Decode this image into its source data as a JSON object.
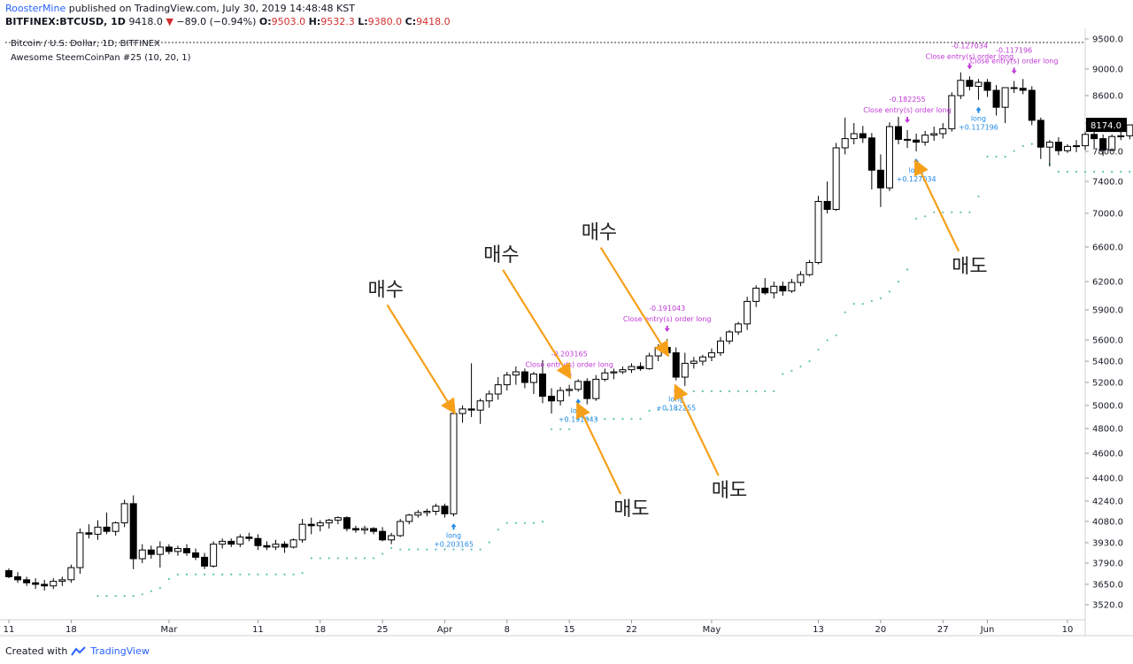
{
  "header": {
    "author": "RoosterMine",
    "published_text": "published on TradingView.com, July 30, 2019 14:48:48 KST",
    "symbol": "BITFINEX:BTCUSD, 1D",
    "last": "9418.0",
    "change": "−89.0 (−0.94%)",
    "o_label": "O:",
    "o": "9503.0",
    "h_label": "H:",
    "h": "9532.3",
    "l_label": "L:",
    "l": "9380.0",
    "c_label": "C:",
    "c": "9418.0"
  },
  "footer": {
    "created_with": "Created with",
    "brand": "TradingView"
  },
  "colors": {
    "up_body": "#ffffff",
    "down_body": "#000000",
    "wick": "#000000",
    "dots": "#5fbfb7",
    "long": "#1e88e5",
    "close": "#c039d6",
    "arrow": "#f6a01a",
    "price_label_bg": "#000000"
  },
  "chart_data": {
    "type": "candlestick",
    "title": "Bitcoin / U.S. Dollar, 1D, BITFINEX",
    "indicator": "Awesome SteemCoinPan #25 (10, 20, 1)",
    "last_price_label": "8174.0",
    "y_ticks": [
      "9500.0",
      "9000.0",
      "8600.0",
      "8200.0",
      "7800.0",
      "7400.0",
      "7000.0",
      "6600.0",
      "6200.0",
      "5900.0",
      "5600.0",
      "5400.0",
      "5200.0",
      "5000.0",
      "4800.0",
      "4600.0",
      "4400.0",
      "4240.0",
      "4080.0",
      "3930.0",
      "3790.0",
      "3650.0",
      "3520.0"
    ],
    "x_ticks": [
      {
        "label": "11",
        "i": 0
      },
      {
        "label": "18",
        "i": 7
      },
      {
        "label": "Mar",
        "i": 18
      },
      {
        "label": "11",
        "i": 28
      },
      {
        "label": "18",
        "i": 35
      },
      {
        "label": "25",
        "i": 42
      },
      {
        "label": "Apr",
        "i": 49
      },
      {
        "label": "8",
        "i": 56
      },
      {
        "label": "15",
        "i": 63
      },
      {
        "label": "22",
        "i": 70
      },
      {
        "label": "May",
        "i": 79
      },
      {
        "label": "13",
        "i": 91
      },
      {
        "label": "20",
        "i": 98
      },
      {
        "label": "27",
        "i": 105
      },
      {
        "label": "Jun",
        "i": 110
      },
      {
        "label": "10",
        "i": 119
      }
    ],
    "candles": [
      [
        3740,
        3755,
        3690,
        3700
      ],
      [
        3700,
        3730,
        3660,
        3680
      ],
      [
        3680,
        3700,
        3640,
        3660
      ],
      [
        3660,
        3690,
        3620,
        3650
      ],
      [
        3650,
        3680,
        3610,
        3640
      ],
      [
        3640,
        3690,
        3620,
        3670
      ],
      [
        3670,
        3700,
        3640,
        3680
      ],
      [
        3680,
        3780,
        3660,
        3760
      ],
      [
        3760,
        4030,
        3720,
        4000
      ],
      [
        4000,
        4060,
        3960,
        3990
      ],
      [
        3990,
        4090,
        3950,
        4040
      ],
      [
        4040,
        4150,
        3990,
        4010
      ],
      [
        4010,
        4080,
        3980,
        4070
      ],
      [
        4070,
        4250,
        4040,
        4220
      ],
      [
        4220,
        4280,
        3750,
        3820
      ],
      [
        3820,
        3920,
        3790,
        3880
      ],
      [
        3880,
        3910,
        3820,
        3850
      ],
      [
        3850,
        3940,
        3760,
        3900
      ],
      [
        3900,
        3920,
        3850,
        3870
      ],
      [
        3870,
        3910,
        3840,
        3890
      ],
      [
        3890,
        3920,
        3840,
        3860
      ],
      [
        3860,
        3890,
        3810,
        3830
      ],
      [
        3830,
        3860,
        3750,
        3770
      ],
      [
        3770,
        3940,
        3760,
        3920
      ],
      [
        3920,
        3960,
        3890,
        3940
      ],
      [
        3940,
        3960,
        3900,
        3920
      ],
      [
        3920,
        3990,
        3900,
        3970
      ],
      [
        3970,
        4000,
        3940,
        3960
      ],
      [
        3960,
        3990,
        3880,
        3910
      ],
      [
        3910,
        3940,
        3880,
        3900
      ],
      [
        3900,
        3950,
        3880,
        3920
      ],
      [
        3920,
        3940,
        3860,
        3900
      ],
      [
        3900,
        3960,
        3890,
        3950
      ],
      [
        3950,
        4100,
        3930,
        4060
      ],
      [
        4060,
        4110,
        3990,
        4050
      ],
      [
        4050,
        4090,
        4010,
        4070
      ],
      [
        4070,
        4100,
        4030,
        4090
      ],
      [
        4090,
        4120,
        4060,
        4110
      ],
      [
        4110,
        4120,
        4010,
        4030
      ],
      [
        4030,
        4050,
        4000,
        4020
      ],
      [
        4020,
        4050,
        3990,
        4030
      ],
      [
        4030,
        4040,
        3990,
        4010
      ],
      [
        4010,
        4040,
        3940,
        3950
      ],
      [
        3950,
        4000,
        3920,
        3980
      ],
      [
        3980,
        4100,
        3970,
        4080
      ],
      [
        4080,
        4140,
        4060,
        4130
      ],
      [
        4130,
        4170,
        4110,
        4150
      ],
      [
        4150,
        4180,
        4120,
        4160
      ],
      [
        4160,
        4220,
        4130,
        4200
      ],
      [
        4200,
        4220,
        4110,
        4140
      ],
      [
        4140,
        4960,
        4120,
        4930
      ],
      [
        4930,
        5000,
        4850,
        4970
      ],
      [
        4970,
        5380,
        4900,
        4960
      ],
      [
        4960,
        5060,
        4840,
        5040
      ],
      [
        5040,
        5130,
        4980,
        5100
      ],
      [
        5100,
        5250,
        5050,
        5180
      ],
      [
        5180,
        5300,
        5130,
        5270
      ],
      [
        5270,
        5350,
        5180,
        5300
      ],
      [
        5300,
        5330,
        5150,
        5200
      ],
      [
        5200,
        5300,
        5100,
        5280
      ],
      [
        5280,
        5410,
        5020,
        5080
      ],
      [
        5080,
        5150,
        4930,
        5040
      ],
      [
        5040,
        5160,
        5000,
        5130
      ],
      [
        5130,
        5180,
        5080,
        5140
      ],
      [
        5140,
        5230,
        5120,
        5210
      ],
      [
        5210,
        5240,
        5010,
        5060
      ],
      [
        5060,
        5270,
        5040,
        5230
      ],
      [
        5230,
        5330,
        5210,
        5290
      ],
      [
        5290,
        5330,
        5230,
        5300
      ],
      [
        5300,
        5350,
        5280,
        5320
      ],
      [
        5320,
        5380,
        5290,
        5350
      ],
      [
        5350,
        5390,
        5310,
        5330
      ],
      [
        5330,
        5480,
        5320,
        5450
      ],
      [
        5450,
        5560,
        5400,
        5530
      ],
      [
        5530,
        5610,
        5450,
        5480
      ],
      [
        5480,
        5530,
        5220,
        5250
      ],
      [
        5250,
        5480,
        5170,
        5380
      ],
      [
        5380,
        5440,
        5330,
        5400
      ],
      [
        5400,
        5460,
        5360,
        5440
      ],
      [
        5440,
        5520,
        5400,
        5480
      ],
      [
        5480,
        5630,
        5450,
        5590
      ],
      [
        5590,
        5700,
        5560,
        5680
      ],
      [
        5680,
        5780,
        5650,
        5760
      ],
      [
        5760,
        6040,
        5700,
        5990
      ],
      [
        5990,
        6160,
        5930,
        6130
      ],
      [
        6130,
        6240,
        6060,
        6080
      ],
      [
        6080,
        6200,
        6020,
        6150
      ],
      [
        6150,
        6200,
        6050,
        6100
      ],
      [
        6100,
        6230,
        6080,
        6190
      ],
      [
        6190,
        6320,
        6150,
        6280
      ],
      [
        6280,
        6450,
        6260,
        6420
      ],
      [
        6420,
        7220,
        6400,
        7150
      ],
      [
        7150,
        7400,
        7000,
        7050
      ],
      [
        7050,
        7920,
        7030,
        7850
      ],
      [
        7850,
        8280,
        7760,
        7980
      ],
      [
        7980,
        8200,
        7900,
        8050
      ],
      [
        8050,
        8160,
        7920,
        7990
      ],
      [
        7990,
        8060,
        7300,
        7550
      ],
      [
        7550,
        7760,
        7080,
        7320
      ],
      [
        7320,
        8210,
        7280,
        8150
      ],
      [
        8150,
        8290,
        7900,
        7970
      ],
      [
        7970,
        8100,
        7850,
        7960
      ],
      [
        7960,
        8050,
        7800,
        7930
      ],
      [
        7930,
        8090,
        7880,
        8030
      ],
      [
        8030,
        8150,
        7950,
        8050
      ],
      [
        8050,
        8200,
        7980,
        8120
      ],
      [
        8120,
        8650,
        8080,
        8600
      ],
      [
        8600,
        8950,
        8550,
        8830
      ],
      [
        8830,
        8890,
        8680,
        8740
      ],
      [
        8740,
        8850,
        8540,
        8800
      ],
      [
        8800,
        8850,
        8580,
        8680
      ],
      [
        8680,
        8760,
        8310,
        8430
      ],
      [
        8430,
        8700,
        8200,
        8720
      ],
      [
        8720,
        8820,
        8640,
        8710
      ],
      [
        8710,
        8850,
        8620,
        8680
      ],
      [
        8680,
        8740,
        8170,
        8240
      ],
      [
        8240,
        8280,
        7700,
        7860
      ],
      [
        7860,
        7960,
        7600,
        7930
      ],
      [
        7930,
        8000,
        7750,
        7810
      ],
      [
        7810,
        7900,
        7780,
        7870
      ],
      [
        7870,
        7960,
        7790,
        7880
      ],
      [
        7880,
        8080,
        7820,
        8040
      ],
      [
        8040,
        8120,
        7850,
        7980
      ],
      [
        7980,
        8040,
        7740,
        7820
      ],
      [
        7820,
        8040,
        7800,
        8010
      ],
      [
        8010,
        8100,
        7960,
        8020
      ],
      [
        8020,
        8180,
        7970,
        8174
      ]
    ],
    "signals": [
      {
        "type": "long",
        "i": 50,
        "label": "long",
        "value": "+0.203165"
      },
      {
        "type": "close",
        "i": 63,
        "label": "Close entry(s) order long",
        "value": "-0.203165"
      },
      {
        "type": "long",
        "i": 64,
        "label": "long",
        "value": "+0.191043"
      },
      {
        "type": "close",
        "i": 74,
        "label": "Close entry(s) order long",
        "value": "-0.191043"
      },
      {
        "type": "long",
        "i": 75,
        "label": "long",
        "value": "+0.182255"
      },
      {
        "type": "close",
        "i": 101,
        "label": "Close entry(s) order long",
        "value": "-0.182255"
      },
      {
        "type": "long",
        "i": 102,
        "label": "long",
        "value": "+0.127034"
      },
      {
        "type": "close",
        "i": 108,
        "label": "Close entry(s) order long",
        "value": "-0.127034"
      },
      {
        "type": "long",
        "i": 109,
        "label": "long",
        "value": "+0.117196"
      },
      {
        "type": "close",
        "i": 113,
        "label": "Close entry(s) order long",
        "value": "-0.117196"
      }
    ],
    "annotations": [
      {
        "text": "매수",
        "i": 50,
        "price": 4950
      },
      {
        "text": "매수",
        "i": 63,
        "price": 5260
      },
      {
        "text": "매수",
        "i": 74,
        "price": 5470
      },
      {
        "text": "매도",
        "i": 64,
        "price": 5000
      },
      {
        "text": "매도",
        "i": 75,
        "price": 5160
      },
      {
        "text": "매도",
        "i": 102,
        "price": 7650
      }
    ]
  }
}
